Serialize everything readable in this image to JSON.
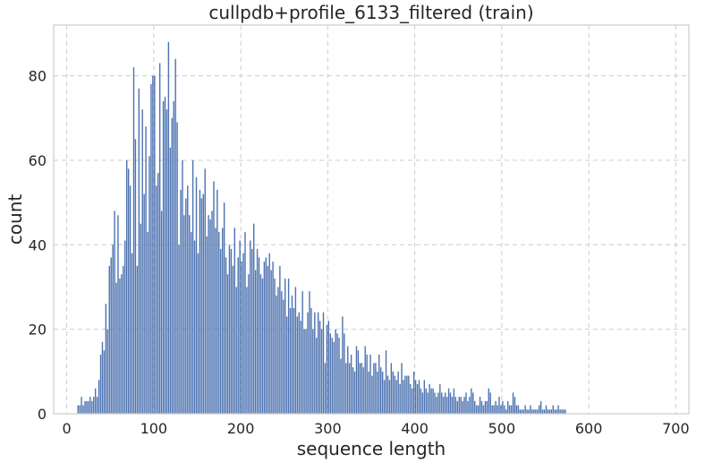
{
  "chart_data": {
    "type": "bar",
    "title": "cullpdb+profile_6133_filtered (train)",
    "xlabel": "sequence length",
    "ylabel": "count",
    "xlim": [
      -15,
      715
    ],
    "ylim": [
      0,
      92
    ],
    "xticks": [
      0,
      100,
      200,
      300,
      400,
      500,
      600,
      700
    ],
    "yticks": [
      0,
      20,
      40,
      60,
      80
    ],
    "grid": true,
    "bar_color": "#4c72b0",
    "bin_start": 12,
    "bin_width": 2,
    "values": [
      2,
      2,
      4,
      2,
      3,
      3,
      3,
      4,
      3,
      4,
      6,
      4,
      8,
      14,
      17,
      15,
      26,
      20,
      35,
      37,
      40,
      48,
      31,
      47,
      32,
      33,
      35,
      41,
      60,
      58,
      54,
      38,
      82,
      65,
      35,
      77,
      45,
      72,
      52,
      68,
      43,
      61,
      78,
      80,
      80,
      54,
      57,
      83,
      48,
      74,
      75,
      72,
      88,
      63,
      70,
      74,
      84,
      69,
      40,
      53,
      60,
      47,
      51,
      54,
      47,
      43,
      60,
      41,
      56,
      38,
      53,
      51,
      52,
      58,
      42,
      47,
      46,
      48,
      55,
      44,
      53,
      43,
      39,
      44,
      50,
      37,
      33,
      40,
      39,
      35,
      44,
      30,
      37,
      41,
      36,
      38,
      43,
      30,
      33,
      41,
      39,
      45,
      34,
      39,
      37,
      33,
      32,
      36,
      37,
      35,
      38,
      34,
      36,
      32,
      28,
      30,
      35,
      29,
      27,
      32,
      23,
      32,
      25,
      28,
      25,
      30,
      23,
      24,
      22,
      29,
      20,
      20,
      24,
      29,
      25,
      20,
      24,
      18,
      24,
      22,
      20,
      24,
      12,
      21,
      22,
      19,
      18,
      17,
      20,
      19,
      18,
      13,
      23,
      19,
      12,
      16,
      12,
      14,
      11,
      10,
      16,
      15,
      12,
      12,
      11,
      16,
      14,
      10,
      14,
      9,
      12,
      12,
      10,
      14,
      11,
      10,
      8,
      15,
      9,
      8,
      12,
      10,
      9,
      8,
      10,
      7,
      12,
      8,
      9,
      9,
      9,
      7,
      6,
      10,
      8,
      7,
      8,
      6,
      5,
      8,
      6,
      5,
      7,
      6,
      6,
      5,
      4,
      5,
      7,
      5,
      4,
      5,
      4,
      6,
      5,
      4,
      6,
      4,
      3,
      4,
      4,
      3,
      4,
      5,
      3,
      4,
      6,
      5,
      3,
      2,
      2,
      4,
      3,
      2,
      3,
      3,
      6,
      5,
      2,
      2,
      3,
      2,
      4,
      2,
      3,
      2,
      1,
      3,
      2,
      2,
      5,
      4,
      2,
      2,
      1,
      1,
      1,
      2,
      1,
      1,
      2,
      1,
      1,
      1,
      1,
      2,
      3,
      1,
      1,
      2,
      1,
      1,
      1,
      2,
      1,
      1,
      2,
      1,
      1,
      1,
      1
    ]
  }
}
